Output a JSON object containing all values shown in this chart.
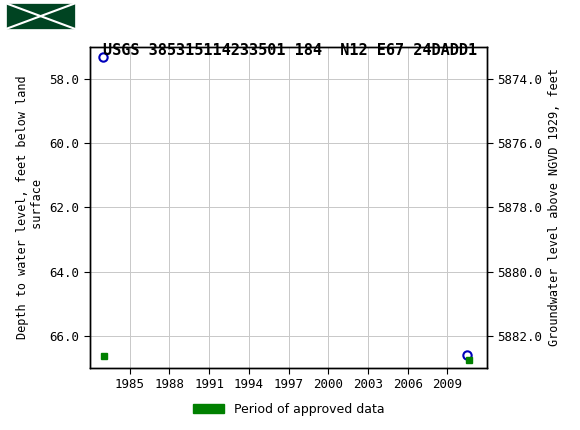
{
  "title": "USGS 385315114233501 184  N12 E67 24DADD1",
  "ylabel_left": "Depth to water level, feet below land\n surface",
  "ylabel_right": "Groundwater level above NGVD 1929, feet",
  "ylim_left": [
    57.0,
    67.0
  ],
  "ylim_right": [
    5873.0,
    5883.0
  ],
  "xlim": [
    1982.0,
    2012.0
  ],
  "yticks_left": [
    58.0,
    60.0,
    62.0,
    64.0,
    66.0
  ],
  "yticks_right": [
    5874.0,
    5876.0,
    5878.0,
    5880.0,
    5882.0
  ],
  "xticks": [
    1985,
    1988,
    1991,
    1994,
    1997,
    2000,
    2003,
    2006,
    2009
  ],
  "pt1_x": 1983.0,
  "pt1_y": 57.3,
  "pt2_x": 1983.1,
  "pt2_y": 66.65,
  "pt3_x": 2010.5,
  "pt3_y": 66.6,
  "pt4_x": 2010.6,
  "pt4_y": 66.75,
  "header_bg_color": "#006633",
  "header_text_color": "#ffffff",
  "plot_bg_color": "#ffffff",
  "fig_bg_color": "#ffffff",
  "grid_color": "#c8c8c8",
  "border_color": "#000000",
  "point_color": "#0000bb",
  "green_color": "#008000",
  "legend_label": "Period of approved data",
  "title_fontsize": 11,
  "tick_fontsize": 9,
  "axis_label_fontsize": 8.5,
  "header_fontsize": 12
}
